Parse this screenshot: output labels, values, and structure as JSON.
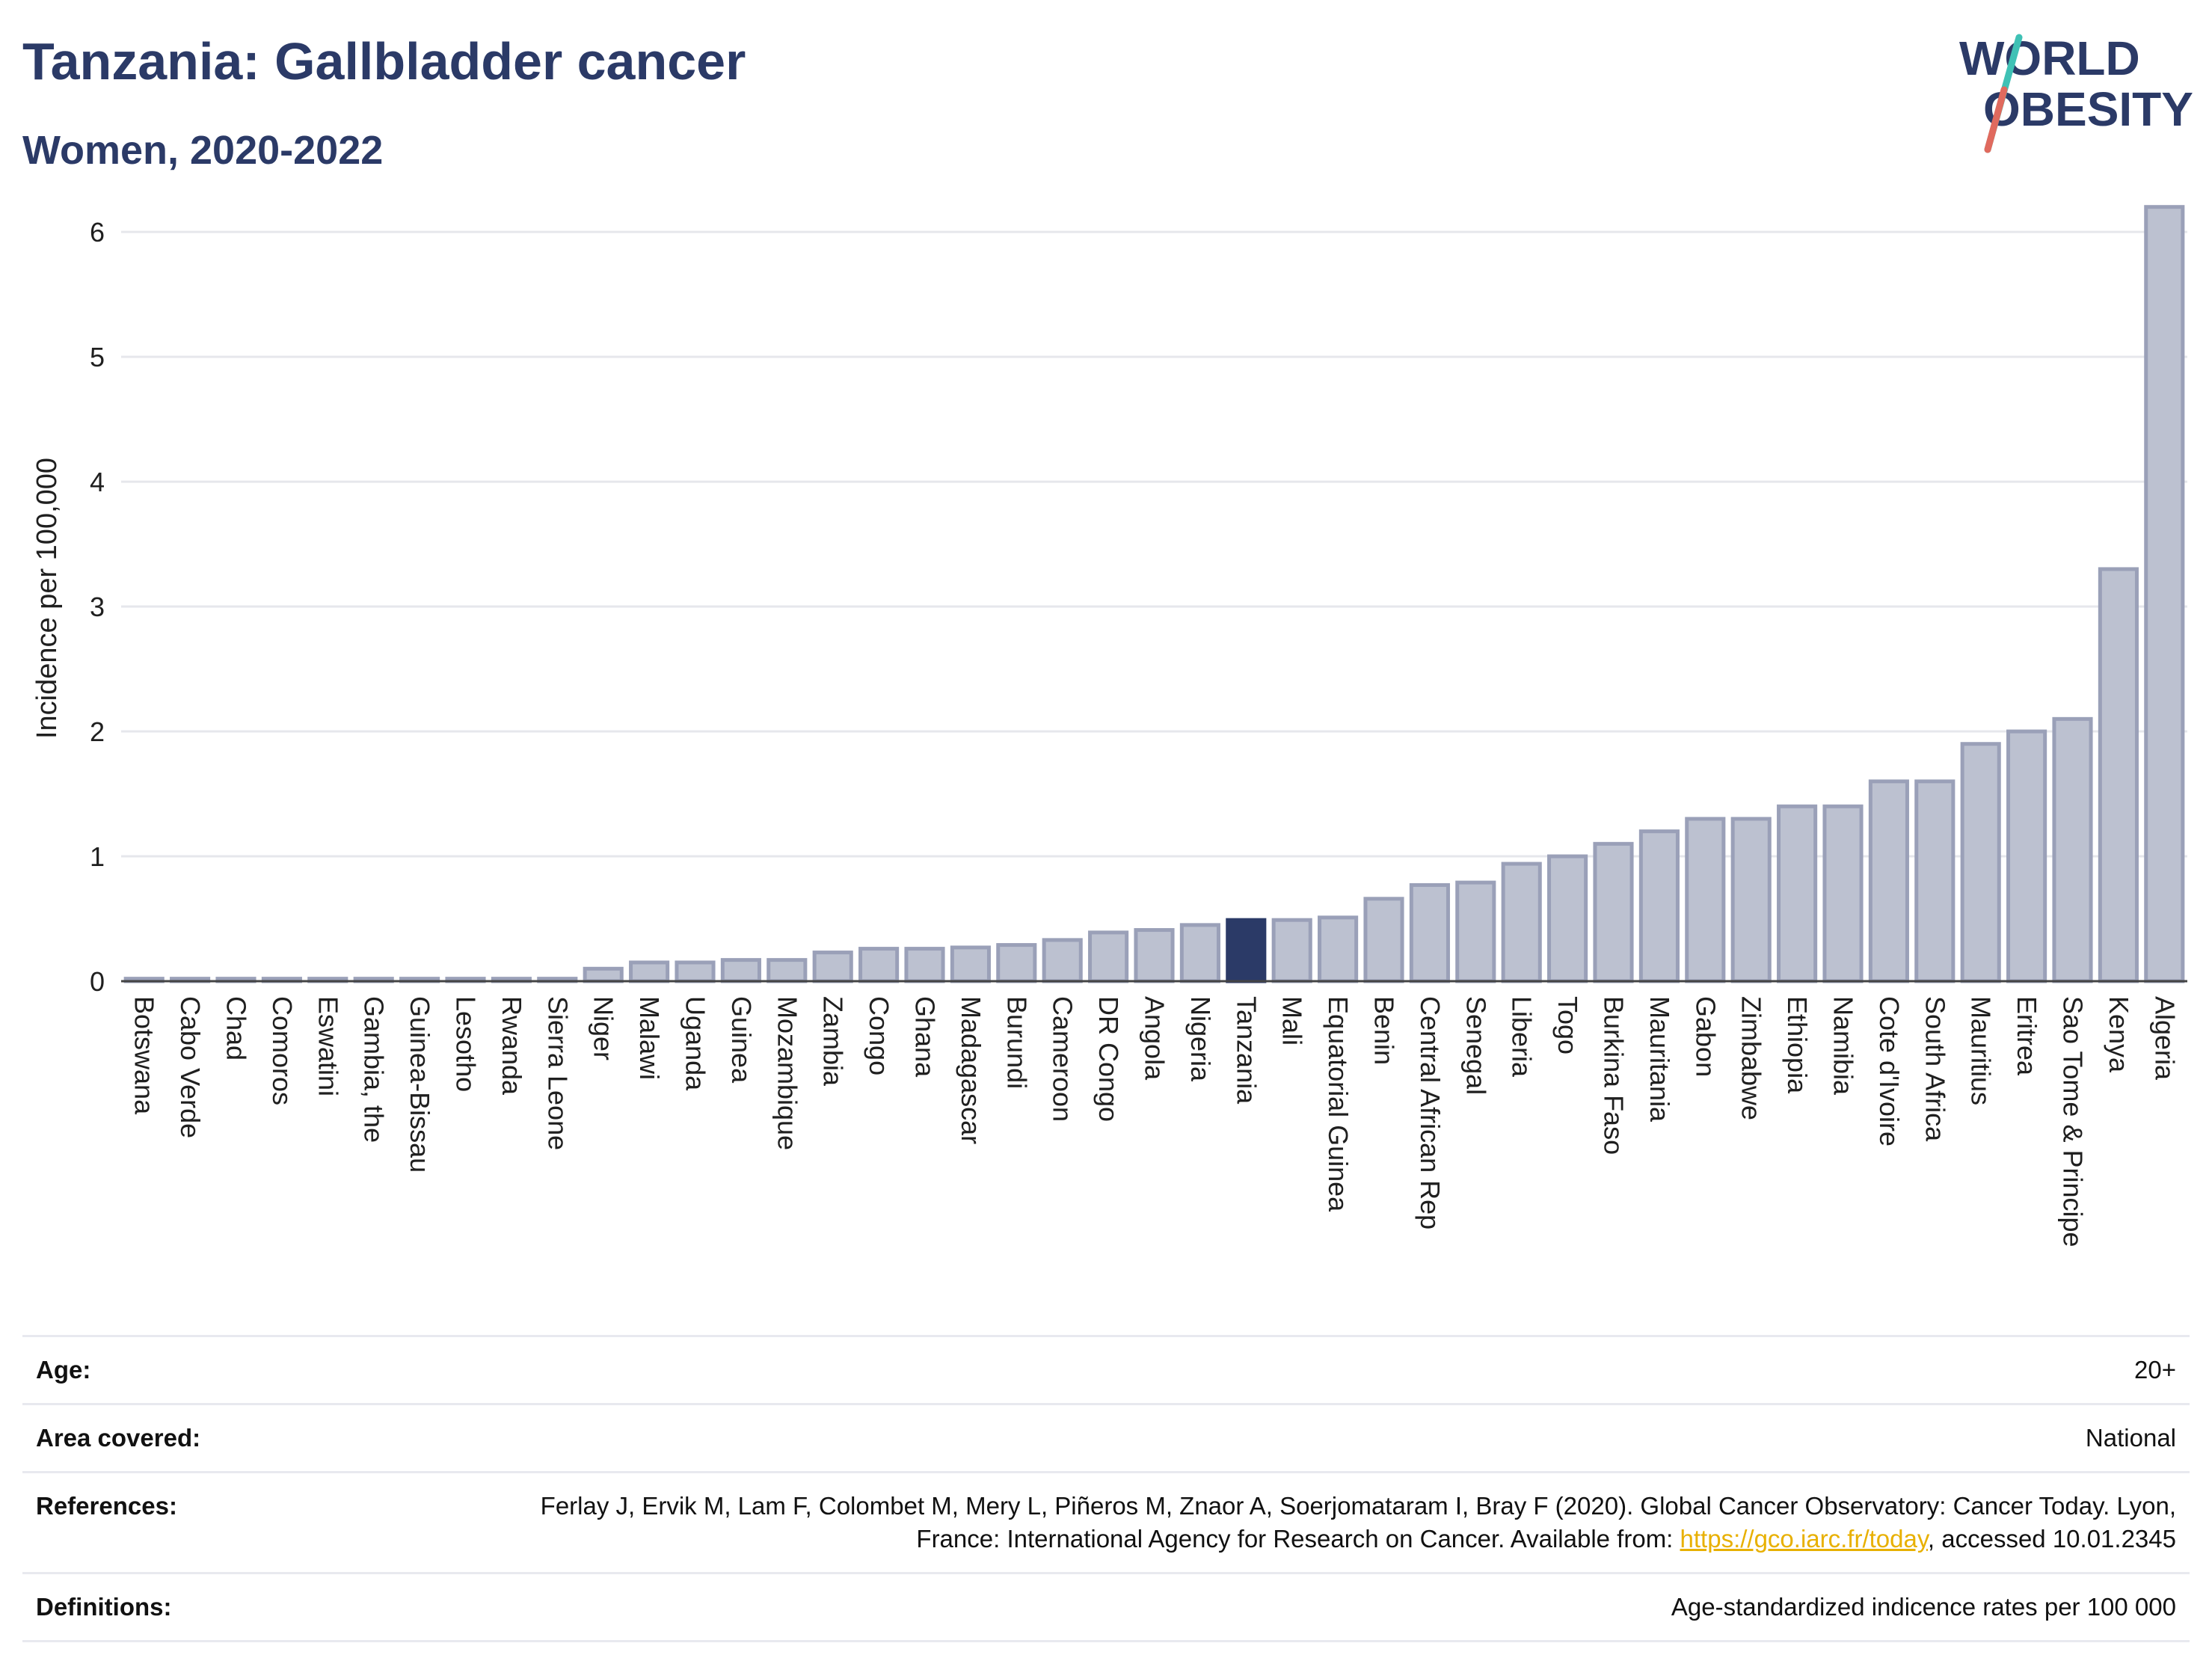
{
  "header": {
    "title": "Tanzania: Gallbladder cancer",
    "subtitle": "Women, 2020-2022"
  },
  "logo": {
    "line1": "WORLD",
    "line2": "OBESITY"
  },
  "colors": {
    "bar": "#bcc1d0",
    "bar_border": "#9aa0b8",
    "highlight": "#2b3a67",
    "title": "#2b3a67",
    "link": "#e8b000"
  },
  "chart_data": {
    "type": "bar",
    "ylabel": "Incidence per 100,000",
    "ylim": [
      0,
      6.3
    ],
    "yticks": [
      0,
      1,
      2,
      3,
      4,
      5,
      6
    ],
    "grid": true,
    "highlight": "Tanzania",
    "categories": [
      "Botswana",
      "Cabo Verde",
      "Chad",
      "Comoros",
      "Eswatini",
      "Gambia, the",
      "Guinea-Bissau",
      "Lesotho",
      "Rwanda",
      "Sierra Leone",
      "Niger",
      "Malawi",
      "Uganda",
      "Guinea",
      "Mozambique",
      "Zambia",
      "Congo",
      "Ghana",
      "Madagascar",
      "Burundi",
      "Cameroon",
      "DR Congo",
      "Angola",
      "Nigeria",
      "Tanzania",
      "Mali",
      "Equatorial Guinea",
      "Benin",
      "Central African Rep",
      "Senegal",
      "Liberia",
      "Togo",
      "Burkina Faso",
      "Mauritania",
      "Gabon",
      "Zimbabwe",
      "Ethiopia",
      "Namibia",
      "Cote d'Ivoire",
      "South Africa",
      "Mauritius",
      "Eritrea",
      "Sao Tome & Principe",
      "Kenya",
      "Algeria"
    ],
    "values": [
      0.02,
      0.02,
      0.02,
      0.02,
      0.02,
      0.02,
      0.02,
      0.02,
      0.02,
      0.02,
      0.1,
      0.15,
      0.15,
      0.17,
      0.17,
      0.23,
      0.26,
      0.26,
      0.27,
      0.29,
      0.33,
      0.39,
      0.41,
      0.45,
      0.49,
      0.49,
      0.51,
      0.66,
      0.77,
      0.79,
      0.94,
      1.0,
      1.1,
      1.2,
      1.3,
      1.3,
      1.4,
      1.4,
      1.6,
      1.6,
      1.9,
      2.0,
      2.1,
      3.3,
      6.2
    ]
  },
  "meta": [
    {
      "key": "Age:",
      "value": "20+"
    },
    {
      "key": "Area covered:",
      "value": "National"
    },
    {
      "key": "References:",
      "value_pre": "Ferlay J, Ervik M, Lam F, Colombet M, Mery L, Piñeros M, Znaor A, Soerjomataram I, Bray F (2020). Global Cancer Observatory: Cancer Today. Lyon, France: International Agency for Research on Cancer. Available from: ",
      "link": "https://gco.iarc.fr/today",
      "value_post": ", accessed 10.01.2345"
    },
    {
      "key": "Definitions:",
      "value": "Age-standardized indicence rates per 100 000"
    }
  ]
}
